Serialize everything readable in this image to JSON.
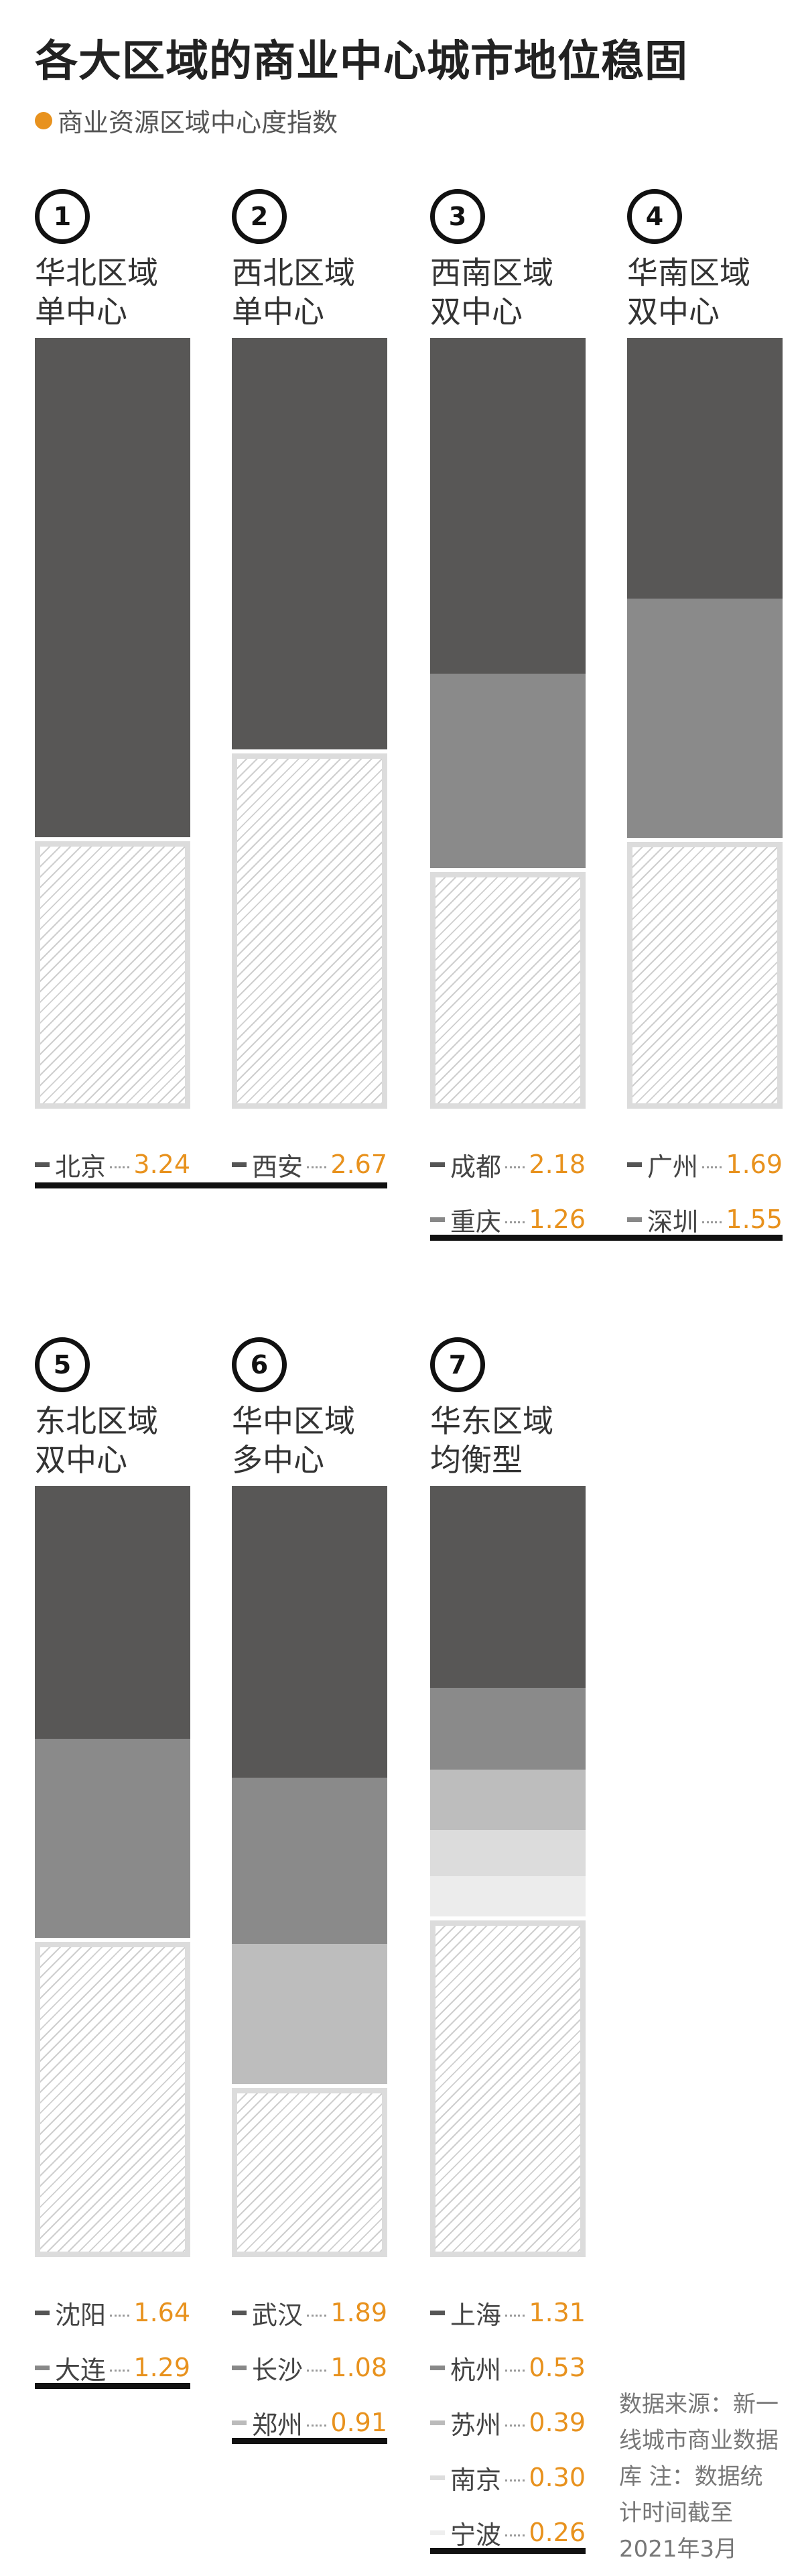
{
  "title": "各大区域的商业中心城市地位稳固",
  "legend": "商业资源区域中心度指数",
  "note": "数据来源：新一线城市商业数据库 注：数据统计时间截至2021年3月",
  "colors": {
    "accent": "#e8921e",
    "shades": [
      "#585756",
      "#8a8a8a",
      "#bdbdbd",
      "#dcdcdc",
      "#ececec"
    ],
    "dash": [
      "#555555",
      "#888888",
      "#bbbbbb",
      "#dddddd",
      "#eeeeee"
    ]
  },
  "chart_data": {
    "type": "bar",
    "title": "各大区域的商业中心城市地位稳固",
    "legend": [
      "商业资源区域中心度指数"
    ],
    "stacked": true,
    "ylim": [
      0,
      5
    ],
    "panels": [
      {
        "number": "1",
        "region": "华北区域",
        "type_label": "单中心",
        "cities": [
          "北京"
        ],
        "values": [
          3.24
        ],
        "value_labels": [
          "3.24"
        ]
      },
      {
        "number": "2",
        "region": "西北区域",
        "type_label": "单中心",
        "cities": [
          "西安"
        ],
        "values": [
          2.67
        ],
        "value_labels": [
          "2.67"
        ]
      },
      {
        "number": "3",
        "region": "西南区域",
        "type_label": "双中心",
        "cities": [
          "成都",
          "重庆"
        ],
        "values": [
          2.18,
          1.26
        ],
        "value_labels": [
          "2.18",
          "1.26"
        ]
      },
      {
        "number": "4",
        "region": "华南区域",
        "type_label": "双中心",
        "cities": [
          "广州",
          "深圳"
        ],
        "values": [
          1.69,
          1.55
        ],
        "value_labels": [
          "1.69",
          "1.55"
        ]
      },
      {
        "number": "5",
        "region": "东北区域",
        "type_label": "双中心",
        "cities": [
          "沈阳",
          "大连"
        ],
        "values": [
          1.64,
          1.29
        ],
        "value_labels": [
          "1.64",
          "1.29"
        ]
      },
      {
        "number": "6",
        "region": "华中区域",
        "type_label": "多中心",
        "cities": [
          "武汉",
          "长沙",
          "郑州"
        ],
        "values": [
          1.89,
          1.08,
          0.91
        ],
        "value_labels": [
          "1.89",
          "1.08",
          "0.91"
        ]
      },
      {
        "number": "7",
        "region": "华东区域",
        "type_label": "均衡型",
        "cities": [
          "上海",
          "杭州",
          "苏州",
          "南京",
          "宁波"
        ],
        "values": [
          1.31,
          0.53,
          0.39,
          0.3,
          0.26
        ],
        "value_labels": [
          "1.31",
          "0.53",
          "0.39",
          "0.30",
          "0.26"
        ]
      }
    ]
  }
}
